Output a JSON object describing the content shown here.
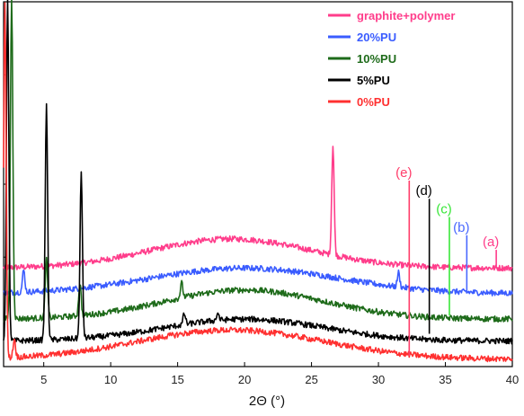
{
  "chart_data": {
    "type": "line",
    "title": "",
    "xlabel": "2Θ (°)",
    "ylabel": "",
    "xlim": [
      2,
      40
    ],
    "xticks": [
      5,
      10,
      15,
      20,
      25,
      30,
      35,
      40
    ],
    "ylim": [
      0,
      100
    ],
    "grid": false,
    "legend_position": "top-right",
    "series": [
      {
        "name": "graphite+polymer",
        "color": "#ff3d8b",
        "baseline": 27,
        "hump": {
          "center": 19,
          "height": 8,
          "width": 6
        },
        "peaks": [
          {
            "x": 26.6,
            "h": 30
          }
        ]
      },
      {
        "name": "20%PU",
        "color": "#3a5cff",
        "baseline": 20,
        "hump": {
          "center": 20,
          "height": 7,
          "width": 7
        },
        "peaks": [
          {
            "x": 3.5,
            "h": 6
          },
          {
            "x": 31.5,
            "h": 4
          }
        ]
      },
      {
        "name": "10%PU",
        "color": "#1e6b1a",
        "baseline": 13,
        "hump": {
          "center": 20,
          "height": 8,
          "width": 6
        },
        "peaks": [
          {
            "x": 2.6,
            "h": 88
          },
          {
            "x": 5.2,
            "h": 16
          },
          {
            "x": 7.7,
            "h": 9
          },
          {
            "x": 15.3,
            "h": 4
          }
        ]
      },
      {
        "name": "5%PU",
        "color": "#000000",
        "baseline": 7,
        "hump": {
          "center": 20,
          "height": 6,
          "width": 6
        },
        "peaks": [
          {
            "x": 2.3,
            "h": 93
          },
          {
            "x": 5.2,
            "h": 64
          },
          {
            "x": 7.8,
            "h": 45
          },
          {
            "x": 15.5,
            "h": 3
          },
          {
            "x": 18,
            "h": 2
          }
        ]
      },
      {
        "name": "0%PU",
        "color": "#ff3030",
        "baseline": 2,
        "hump": {
          "center": 19,
          "height": 8,
          "width": 7
        },
        "peaks": [
          {
            "x": 2.1,
            "h": 98
          },
          {
            "x": 2.8,
            "h": 5
          }
        ]
      }
    ],
    "annotations": [
      {
        "label": "(e)",
        "color": "#ff3d6a",
        "x": 32.3,
        "y_top": 51,
        "y_bottom": 3
      },
      {
        "label": "(d)",
        "color": "#000000",
        "x": 33.8,
        "y_top": 46,
        "y_bottom": 9
      },
      {
        "label": "(c)",
        "color": "#39e639",
        "x": 35.3,
        "y_top": 41,
        "y_bottom": 14
      },
      {
        "label": "(b)",
        "color": "#4a68ff",
        "x": 36.6,
        "y_top": 36,
        "y_bottom": 20
      },
      {
        "label": "(a)",
        "color": "#ff3d8b",
        "x": 38.8,
        "y_top": 32,
        "y_bottom": 27
      }
    ]
  }
}
